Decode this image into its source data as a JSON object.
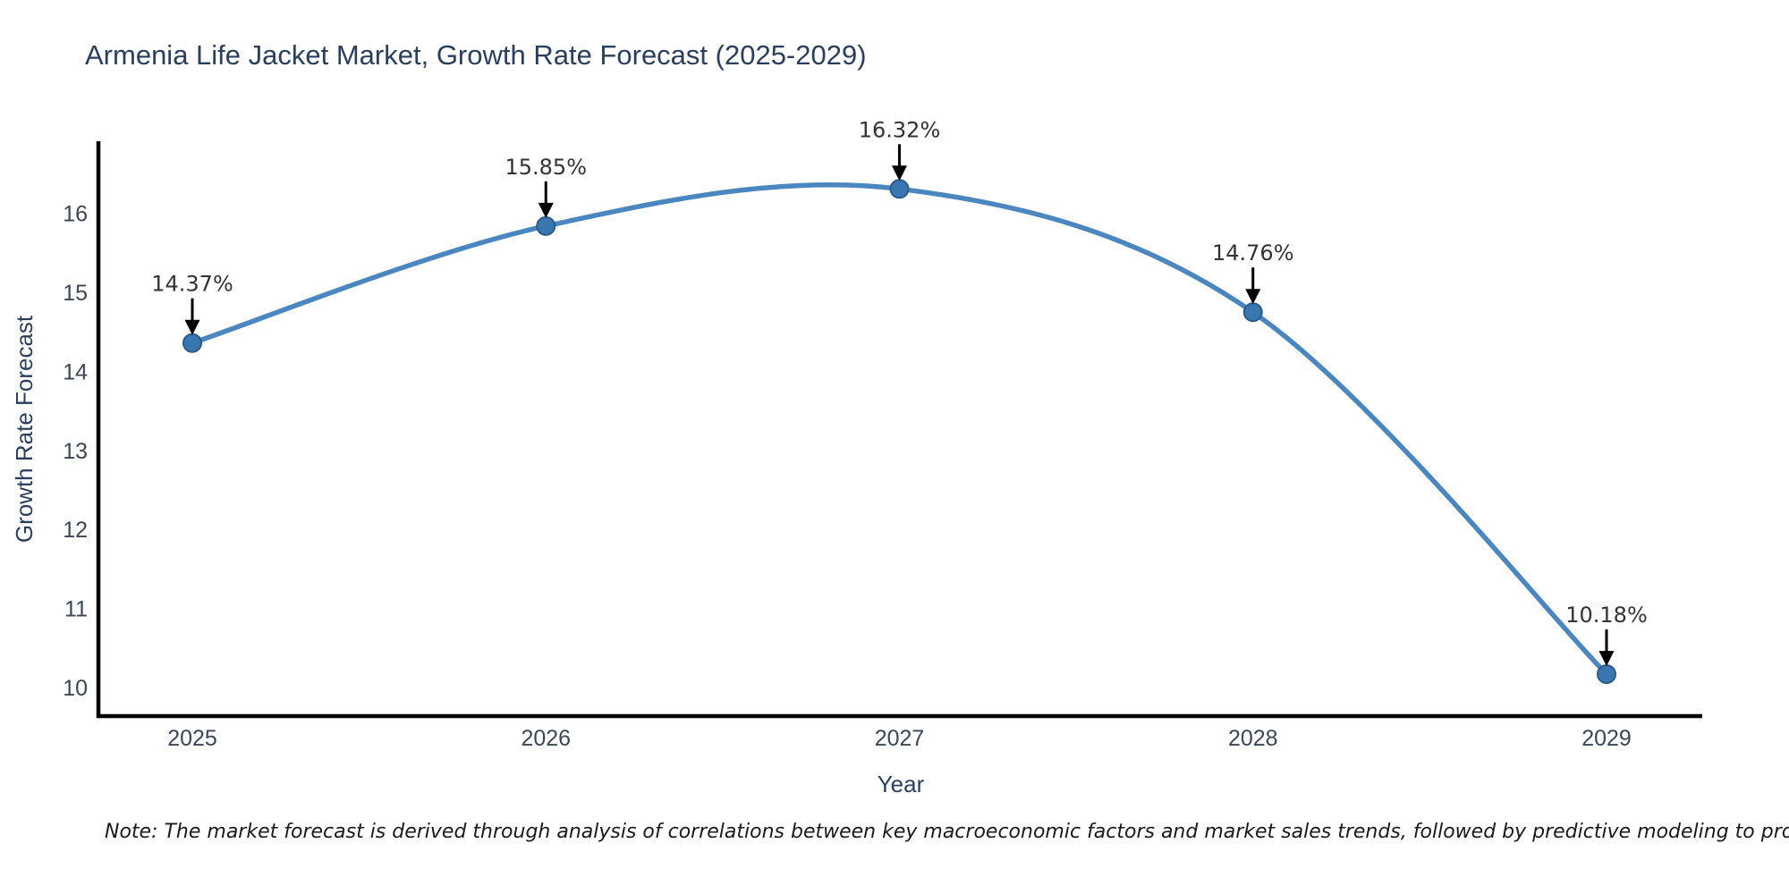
{
  "chart": {
    "note": "Note: The market forecast is derived through analysis of correlations between key macroeconomic factors and market sales trends, followed by predictive modeling to project future sales",
    "colors": {
      "line": "#4a87c0",
      "marker_fill": "#3a76af",
      "marker_edge": "#2b5c8a",
      "axis_line": "#000000",
      "title_text": "#2a3f5f",
      "tick_text": "#3b4656",
      "annotation_text": "#333333",
      "arrow": "#000000"
    }
  },
  "chart_data": {
    "type": "line",
    "title": "Armenia Life Jacket Market, Growth Rate Forecast (2025-2029)",
    "xlabel": "Year",
    "ylabel": "Growth Rate Forecast",
    "categories": [
      "2025",
      "2026",
      "2027",
      "2028",
      "2029"
    ],
    "values": [
      14.37,
      15.85,
      16.32,
      14.76,
      10.18
    ],
    "point_labels": [
      "14.37%",
      "15.85%",
      "16.32%",
      "14.76%",
      "10.18%"
    ],
    "y_ticks": [
      10,
      11,
      12,
      13,
      14,
      15,
      16
    ],
    "ylim": [
      9.65,
      16.9
    ],
    "line_shape": "spline",
    "markers": true,
    "grid": false,
    "legend_position": "none",
    "annotations": "value labels with arrows above each point"
  }
}
